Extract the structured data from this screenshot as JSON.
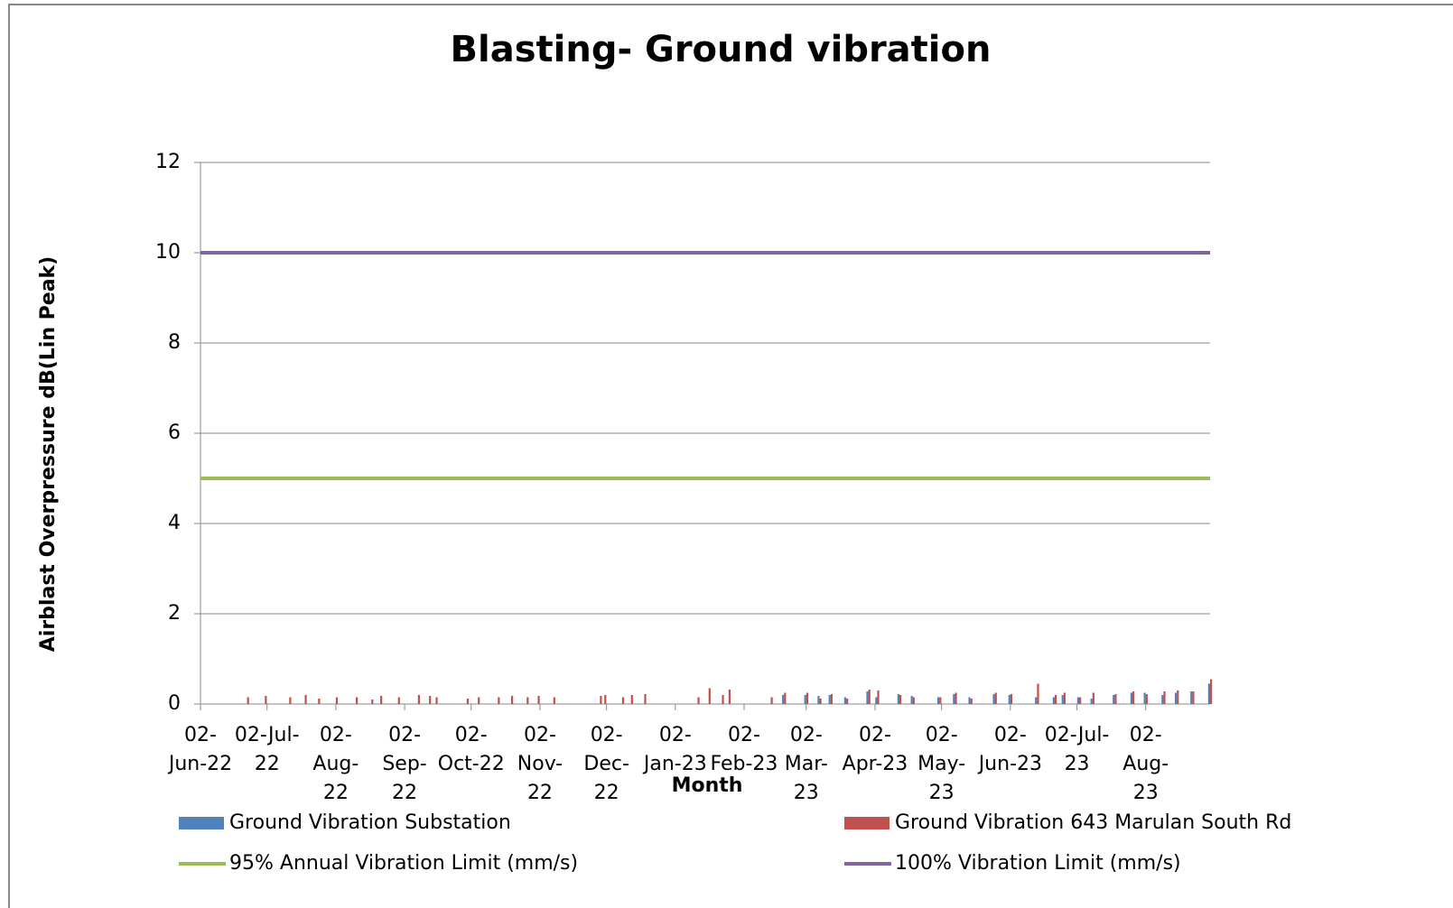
{
  "chart_data": {
    "type": "bar",
    "title": "Blasting- Ground vibration",
    "x_label": "Month",
    "y_label": "Airblast Overpressure dB(Lin Peak)",
    "xlim": [
      "2022-06-02",
      "2023-08-31"
    ],
    "xticks": [
      {
        "value": "2022-06-02",
        "label": "02-Jun-22"
      },
      {
        "value": "2022-07-02",
        "label": "02-Jul-22"
      },
      {
        "value": "2022-08-02",
        "label": "02-Aug-22"
      },
      {
        "value": "2022-09-02",
        "label": "02-Sep-22"
      },
      {
        "value": "2022-10-02",
        "label": "02-Oct-22"
      },
      {
        "value": "2022-11-02",
        "label": "02-Nov-22"
      },
      {
        "value": "2022-12-02",
        "label": "02-Dec-22"
      },
      {
        "value": "2023-01-02",
        "label": "02-Jan-23"
      },
      {
        "value": "2023-02-02",
        "label": "02-Feb-23"
      },
      {
        "value": "2023-03-02",
        "label": "02-Mar-23"
      },
      {
        "value": "2023-04-02",
        "label": "02-Apr-23"
      },
      {
        "value": "2023-05-02",
        "label": "02-May-23"
      },
      {
        "value": "2023-06-02",
        "label": "02-Jun-23"
      },
      {
        "value": "2023-07-02",
        "label": "02-Jul-23"
      },
      {
        "value": "2023-08-02",
        "label": "02-Aug-23"
      }
    ],
    "ylim": [
      0,
      12
    ],
    "yticks": [
      0,
      2,
      4,
      6,
      8,
      10,
      12
    ],
    "grid": true,
    "x": [
      "2022-06-23",
      "2022-07-01",
      "2022-07-12",
      "2022-07-19",
      "2022-07-25",
      "2022-08-02",
      "2022-08-11",
      "2022-08-18",
      "2022-08-22",
      "2022-08-30",
      "2022-09-08",
      "2022-09-13",
      "2022-09-16",
      "2022-09-30",
      "2022-10-05",
      "2022-10-14",
      "2022-10-20",
      "2022-10-27",
      "2022-11-01",
      "2022-11-08",
      "2022-11-29",
      "2022-12-01",
      "2022-12-09",
      "2022-12-13",
      "2022-12-19",
      "2023-01-12",
      "2023-01-17",
      "2023-01-23",
      "2023-01-26",
      "2023-02-14",
      "2023-02-20",
      "2023-03-02",
      "2023-03-08",
      "2023-03-13",
      "2023-03-20",
      "2023-03-30",
      "2023-04-03",
      "2023-04-13",
      "2023-04-19",
      "2023-05-01",
      "2023-05-08",
      "2023-05-15",
      "2023-05-26",
      "2023-06-02",
      "2023-06-14",
      "2023-06-22",
      "2023-06-26",
      "2023-07-03",
      "2023-07-09",
      "2023-07-19",
      "2023-07-27",
      "2023-08-02",
      "2023-08-10",
      "2023-08-16",
      "2023-08-23",
      "2023-08-31"
    ],
    "series": [
      {
        "name": "Ground Vibration Substation",
        "type": "bar",
        "color": "#4f81bd",
        "values": [
          null,
          null,
          null,
          null,
          null,
          null,
          null,
          null,
          null,
          null,
          null,
          null,
          null,
          null,
          null,
          null,
          null,
          null,
          null,
          null,
          null,
          null,
          null,
          null,
          null,
          null,
          null,
          null,
          null,
          null,
          0.2,
          0.2,
          0.18,
          0.2,
          0.15,
          0.28,
          0.15,
          0.22,
          0.18,
          0.15,
          0.22,
          0.15,
          0.22,
          0.2,
          0.15,
          0.15,
          0.2,
          0.15,
          0.12,
          0.2,
          0.25,
          0.25,
          0.2,
          0.25,
          0.28,
          0.45
        ]
      },
      {
        "name": "Ground Vibration 643 Marulan South Rd",
        "type": "bar",
        "color": "#c0504d",
        "values": [
          0.15,
          0.18,
          0.15,
          0.2,
          0.12,
          0.15,
          0.15,
          0.1,
          0.18,
          0.15,
          0.2,
          0.18,
          0.15,
          0.12,
          0.15,
          0.15,
          0.18,
          0.15,
          0.18,
          0.15,
          0.18,
          0.2,
          0.15,
          0.2,
          0.22,
          0.15,
          0.35,
          0.2,
          0.32,
          0.15,
          0.25,
          0.25,
          0.12,
          0.22,
          0.12,
          0.32,
          0.3,
          0.2,
          0.15,
          0.15,
          0.25,
          0.12,
          0.25,
          0.22,
          0.45,
          0.2,
          0.25,
          0.15,
          0.25,
          0.22,
          0.28,
          0.22,
          0.28,
          0.3,
          0.28,
          0.55
        ]
      },
      {
        "name": "95% Annual Vibration Limit (mm/s)",
        "type": "line",
        "color": "#9bbb59",
        "x": [
          "2022-06-02",
          "2023-08-31"
        ],
        "values": [
          5,
          5
        ]
      },
      {
        "name": "100% Vibration Limit (mm/s)",
        "type": "line",
        "color": "#8064a2",
        "x": [
          "2022-06-02",
          "2023-08-31"
        ],
        "values": [
          10,
          10
        ]
      }
    ]
  }
}
